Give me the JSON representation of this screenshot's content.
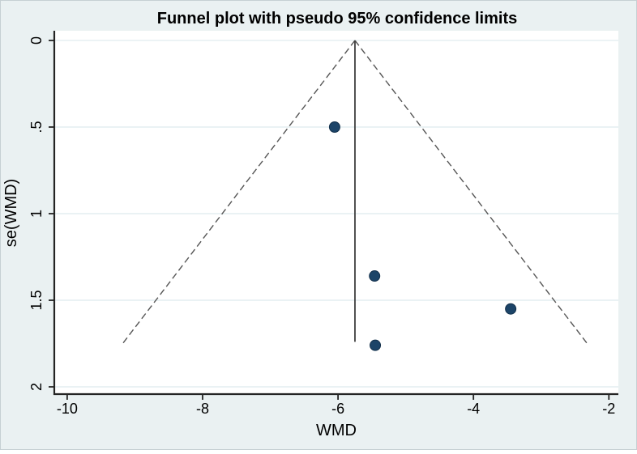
{
  "chart_data": {
    "type": "scatter",
    "title": "Funnel plot with pseudo 95% confidence limits",
    "xlabel": "WMD",
    "ylabel": "se(WMD)",
    "x_ticks": [
      -10,
      -8,
      -6,
      -4,
      -2
    ],
    "x_tick_labels": [
      "-10",
      "-8",
      "-6",
      "-4",
      "-2"
    ],
    "y_ticks": [
      0,
      0.5,
      1,
      1.5,
      2
    ],
    "y_tick_labels": [
      "0",
      ".5",
      "1",
      "1.5",
      "2"
    ],
    "xlim": [
      -10.19,
      -1.86
    ],
    "ylim": [
      -0.056,
      2.042
    ],
    "y_axis_orientation": "reversed (0 at top, 2 at bottom)",
    "grid": "horizontal gridlines at each y tick",
    "legend": "none",
    "points": [
      {
        "wmd": -6.05,
        "se": 0.5
      },
      {
        "wmd": -5.46,
        "se": 1.36
      },
      {
        "wmd": -5.45,
        "se": 1.76
      },
      {
        "wmd": -3.45,
        "se": 1.55
      }
    ],
    "pooled_effect_line": {
      "wmd": -5.75,
      "se_from": 0,
      "se_to": 1.74
    },
    "pseudo_ci_funnel": {
      "apex_wmd": -5.75,
      "apex_se": 0,
      "se_max": 1.76,
      "z": 1.96
    }
  },
  "colors": {
    "canvas_background": "#eaf1f2",
    "plot_background": "#ffffff",
    "gridline": "#e4eef1",
    "axis": "#242424",
    "text": "#000000",
    "ci_dashed_line": "#555555",
    "pooled_line": "#3f3f3f",
    "marker_fill": "#1c4468",
    "marker_stroke": "#13304b"
  }
}
